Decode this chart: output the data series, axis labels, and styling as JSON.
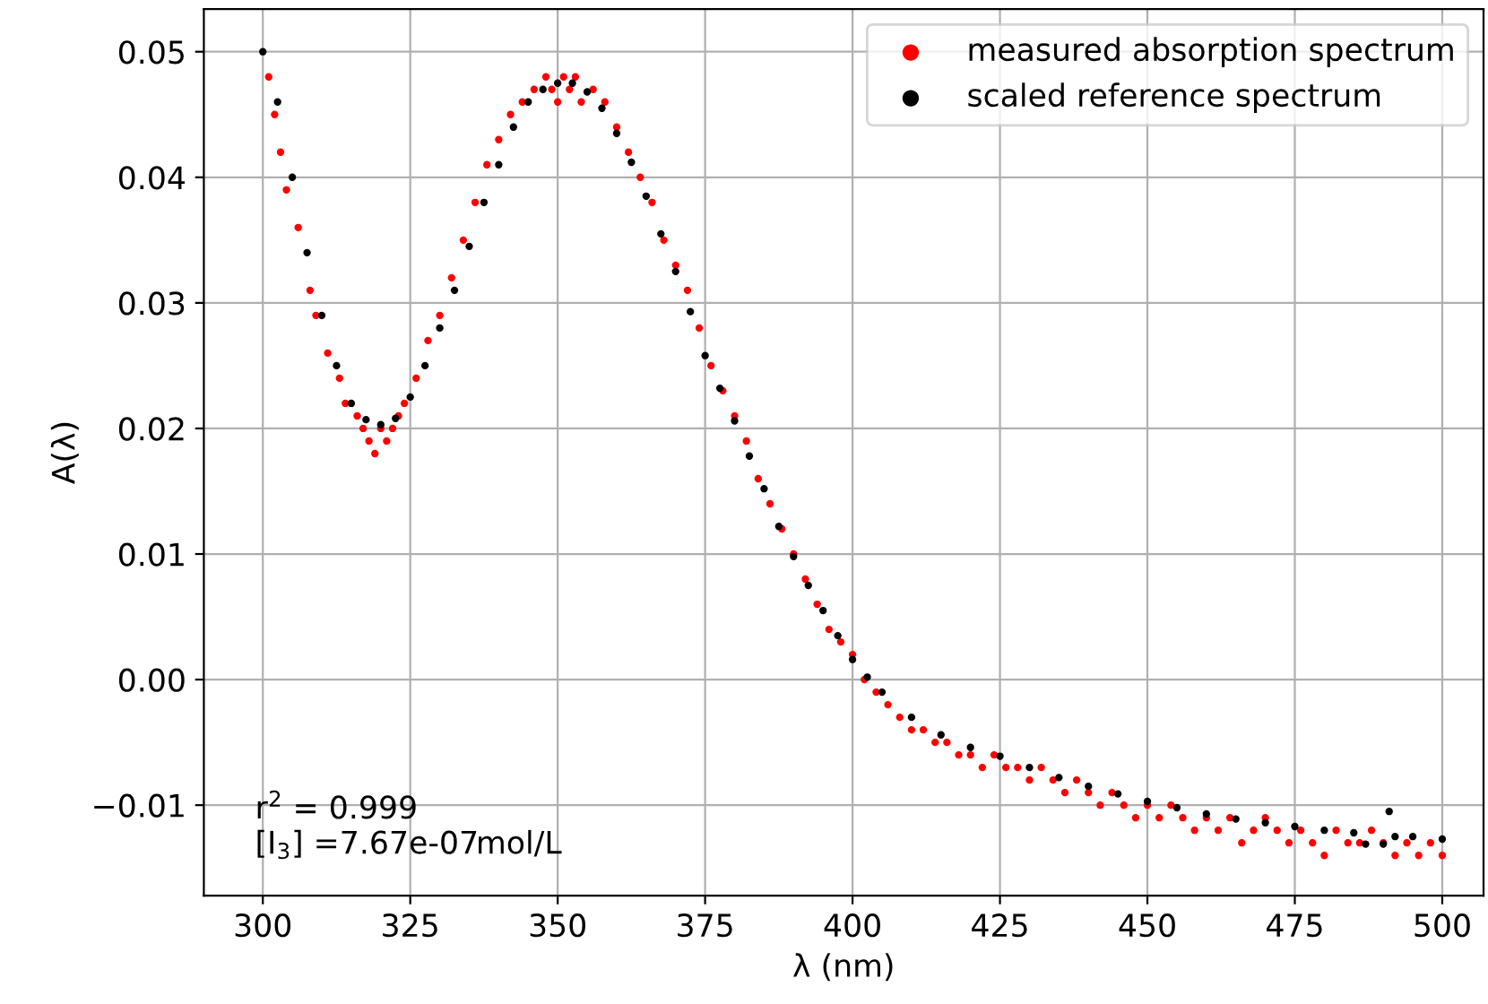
{
  "chart_data": {
    "type": "scatter",
    "xlabel": "λ (nm)",
    "ylabel": "A(λ)",
    "xlim": [
      290,
      507
    ],
    "ylim": [
      -0.0172,
      0.0534
    ],
    "xticks": [
      300,
      325,
      350,
      375,
      400,
      425,
      450,
      475,
      500
    ],
    "yticks": [
      {
        "value": -0.01,
        "label": "−0.01"
      },
      {
        "value": 0.0,
        "label": "0.00"
      },
      {
        "value": 0.01,
        "label": "0.01"
      },
      {
        "value": 0.02,
        "label": "0.02"
      },
      {
        "value": 0.03,
        "label": "0.03"
      },
      {
        "value": 0.04,
        "label": "0.04"
      },
      {
        "value": 0.05,
        "label": "0.05"
      }
    ],
    "grid": true,
    "legend": "top right",
    "marker": "circle",
    "annotations": [
      "r$^{2}$ = 0.999",
      "[I$_{3}$] =7.67e-07mol/L"
    ],
    "series": [
      {
        "name": "measured absorption spectrum",
        "color": "#ff0000",
        "x": [
          301,
          302,
          303,
          304,
          306,
          308,
          309,
          311,
          313,
          314,
          316,
          317,
          318,
          319,
          320,
          321,
          322,
          323,
          324,
          326,
          328,
          330,
          332,
          334,
          336,
          338,
          340,
          342,
          344,
          346,
          348,
          349,
          350,
          351,
          352,
          353,
          354,
          356,
          358,
          360,
          362,
          364,
          366,
          368,
          370,
          372,
          374,
          376,
          378,
          380,
          382,
          384,
          386,
          388,
          390,
          392,
          394,
          396,
          398,
          400,
          402,
          404,
          406,
          408,
          410,
          412,
          414,
          416,
          418,
          420,
          422,
          424,
          426,
          428,
          430,
          432,
          434,
          436,
          438,
          440,
          442,
          444,
          446,
          448,
          450,
          452,
          454,
          456,
          458,
          460,
          462,
          464,
          466,
          468,
          470,
          472,
          474,
          476,
          478,
          480,
          482,
          484,
          486,
          488,
          490,
          492,
          494,
          496,
          498,
          500
        ],
        "values": [
          0.048,
          0.045,
          0.042,
          0.039,
          0.036,
          0.031,
          0.029,
          0.026,
          0.024,
          0.022,
          0.021,
          0.02,
          0.019,
          0.018,
          0.02,
          0.019,
          0.02,
          0.021,
          0.022,
          0.024,
          0.027,
          0.029,
          0.032,
          0.035,
          0.038,
          0.041,
          0.043,
          0.045,
          0.046,
          0.047,
          0.048,
          0.047,
          0.046,
          0.048,
          0.047,
          0.048,
          0.046,
          0.047,
          0.046,
          0.044,
          0.042,
          0.04,
          0.038,
          0.035,
          0.033,
          0.031,
          0.028,
          0.025,
          0.023,
          0.021,
          0.019,
          0.016,
          0.014,
          0.012,
          0.01,
          0.008,
          0.006,
          0.004,
          0.003,
          0.002,
          0.0,
          -0.001,
          -0.002,
          -0.003,
          -0.004,
          -0.004,
          -0.005,
          -0.005,
          -0.006,
          -0.006,
          -0.007,
          -0.006,
          -0.007,
          -0.007,
          -0.008,
          -0.007,
          -0.008,
          -0.009,
          -0.008,
          -0.009,
          -0.01,
          -0.009,
          -0.01,
          -0.011,
          -0.01,
          -0.011,
          -0.01,
          -0.011,
          -0.012,
          -0.011,
          -0.012,
          -0.011,
          -0.013,
          -0.012,
          -0.011,
          -0.012,
          -0.013,
          -0.012,
          -0.013,
          -0.014,
          -0.012,
          -0.013,
          -0.013,
          -0.012,
          -0.013,
          -0.014,
          -0.013,
          -0.014,
          -0.013,
          -0.014
        ]
      },
      {
        "name": "scaled reference spectrum",
        "color": "#000000",
        "x": [
          300,
          302.5,
          305,
          307.5,
          310,
          312.5,
          315,
          317.5,
          320,
          322.5,
          325,
          327.5,
          330,
          332.5,
          335,
          337.5,
          340,
          342.5,
          345,
          347.5,
          350,
          352.5,
          355,
          357.5,
          360,
          362.5,
          365,
          367.5,
          370,
          372.5,
          375,
          377.5,
          380,
          382.5,
          385,
          387.5,
          390,
          392.5,
          395,
          397.5,
          400,
          402.5,
          405,
          410,
          415,
          420,
          425,
          430,
          435,
          440,
          445,
          450,
          455,
          460,
          465,
          470,
          475,
          480,
          485,
          487,
          490,
          491,
          492,
          495,
          500
        ],
        "values": [
          0.05,
          0.046,
          0.04,
          0.034,
          0.029,
          0.025,
          0.022,
          0.0207,
          0.0203,
          0.0208,
          0.0225,
          0.025,
          0.028,
          0.031,
          0.0345,
          0.038,
          0.041,
          0.044,
          0.046,
          0.047,
          0.0475,
          0.0475,
          0.0468,
          0.0455,
          0.0435,
          0.0412,
          0.0385,
          0.0355,
          0.0325,
          0.0293,
          0.0258,
          0.0232,
          0.0206,
          0.0178,
          0.0152,
          0.0122,
          0.0098,
          0.0075,
          0.0055,
          0.0035,
          0.0016,
          0.0002,
          -0.001,
          -0.003,
          -0.0044,
          -0.0054,
          -0.0061,
          -0.007,
          -0.0078,
          -0.0085,
          -0.0091,
          -0.0097,
          -0.0102,
          -0.0107,
          -0.0111,
          -0.0114,
          -0.0117,
          -0.012,
          -0.0122,
          -0.0131,
          -0.0131,
          -0.0105,
          -0.0125,
          -0.0125,
          -0.0127
        ]
      }
    ]
  }
}
